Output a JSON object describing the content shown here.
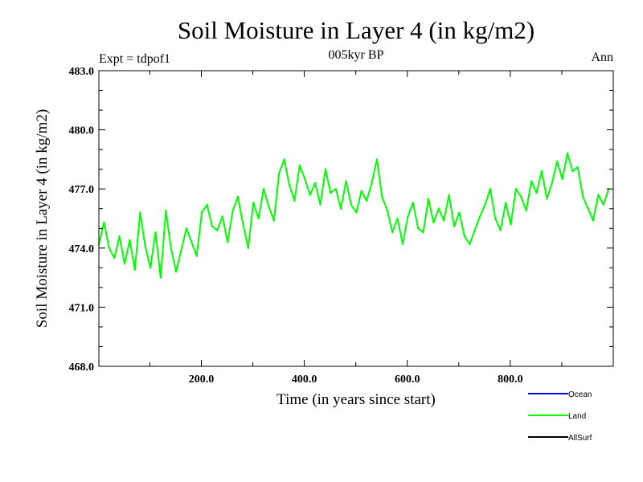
{
  "chart_data": {
    "type": "line",
    "title": "Soil Moisture in Layer 4 (in kg/m2)",
    "subtitle": "005kyr BP",
    "left_note": "Expt = tdpof1",
    "right_note": "Ann",
    "xlabel": "Time (in years since start)",
    "ylabel": "Soil Moisture in Layer 4 (in kg/m2)",
    "xlim": [
      1,
      1000
    ],
    "ylim": [
      468,
      483
    ],
    "x_ticks": [
      200,
      400,
      600,
      800
    ],
    "x_tick_labels": [
      "200.0",
      "400.0",
      "600.0",
      "800.0"
    ],
    "y_ticks": [
      468,
      471,
      474,
      477,
      480,
      483
    ],
    "y_tick_labels": [
      "468.0",
      "471.0",
      "474.0",
      "477.0",
      "480.0",
      "483.0"
    ],
    "grid": false,
    "legend_position": "bottom-right",
    "legend": [
      {
        "name": "Ocean",
        "color": "#0000ff"
      },
      {
        "name": "Land",
        "color": "#00ff00"
      },
      {
        "name": "AllSurf",
        "color": "#000000"
      }
    ],
    "series": [
      {
        "name": "Land",
        "color": "#00ff00",
        "x_start": 1,
        "x_step": 10,
        "values": [
          474.2,
          475.3,
          474.0,
          473.5,
          474.6,
          473.2,
          474.4,
          472.9,
          475.8,
          474.1,
          473.0,
          474.8,
          472.5,
          475.9,
          474.0,
          472.8,
          473.9,
          475.0,
          474.3,
          473.6,
          475.8,
          476.2,
          475.1,
          474.9,
          475.6,
          474.3,
          475.9,
          476.6,
          475.2,
          474.0,
          476.3,
          475.5,
          477.0,
          476.1,
          475.4,
          477.8,
          478.5,
          477.2,
          476.4,
          478.2,
          477.5,
          476.7,
          477.3,
          476.2,
          478.0,
          476.8,
          477.0,
          476.0,
          477.4,
          476.2,
          475.8,
          476.9,
          476.4,
          477.3,
          478.5,
          476.6,
          475.9,
          474.8,
          475.5,
          474.2,
          475.6,
          476.3,
          475.0,
          474.8,
          476.5,
          475.3,
          476.0,
          475.4,
          476.7,
          475.1,
          475.8,
          474.6,
          474.2,
          474.9,
          475.6,
          476.2,
          477.0,
          475.5,
          474.9,
          476.3,
          475.2,
          477.0,
          476.6,
          475.9,
          477.4,
          476.8,
          477.9,
          476.5,
          477.3,
          478.4,
          477.5,
          478.8,
          477.9,
          478.1,
          476.6,
          476.0,
          475.4,
          476.7,
          476.2,
          477.0
        ]
      }
    ]
  }
}
